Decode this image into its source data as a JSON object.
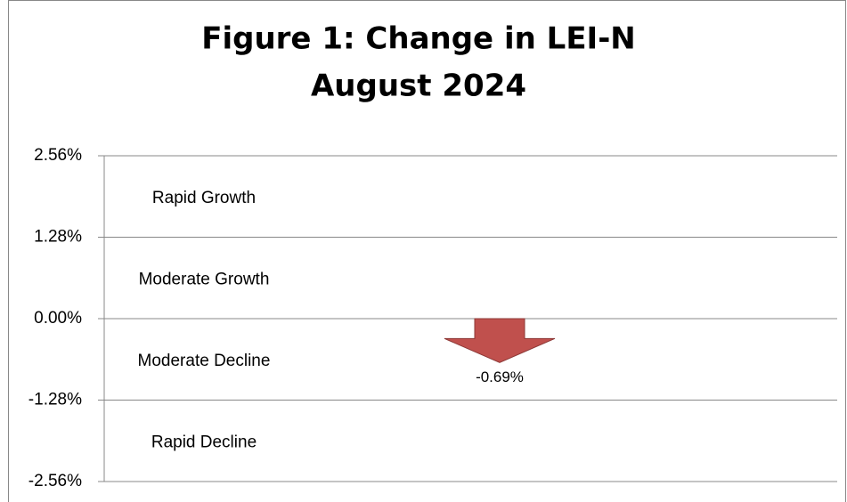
{
  "chart_data": {
    "type": "arrow",
    "title": [
      "Figure 1:  Change in LEI-N",
      "August 2024"
    ],
    "values": [
      -0.69
    ],
    "value_labels": [
      "-0.69%"
    ],
    "color": "#c0504d",
    "ylim": [
      -2.56,
      2.56
    ],
    "yticks": [
      {
        "value": -2.56,
        "label": "-2.56%"
      },
      {
        "value": -1.28,
        "label": "-1.28%"
      },
      {
        "value": 0,
        "label": "0.00%"
      },
      {
        "value": 1.28,
        "label": "1.28%"
      },
      {
        "value": 2.56,
        "label": "2.56%"
      }
    ],
    "zone_labels": [
      "Rapid Decline",
      "Moderate Decline",
      "Moderate Growth",
      "Rapid Growth"
    ],
    "grid": true
  }
}
